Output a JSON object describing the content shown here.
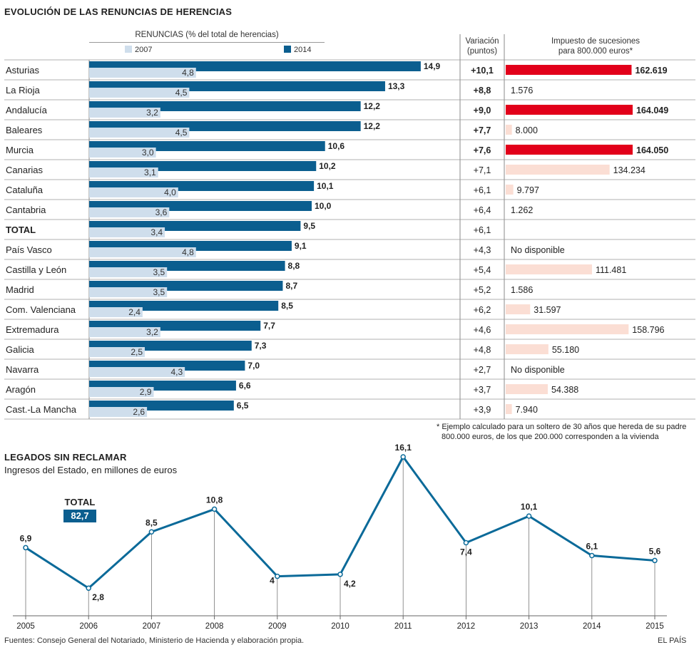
{
  "top": {
    "title": "EVOLUCIÓN DE LAS RENUNCIAS DE HERENCIAS",
    "bar_header": "RENUNCIAS (% del total de herencias)",
    "variation_header_1": "Variación",
    "variation_header_2": "(puntos)",
    "tax_header_1": "Impuesto de sucesiones",
    "tax_header_2": "para 800.000 euros*",
    "footnote_1": "* Ejemplo calculado para un soltero de 30 años que hereda de su padre",
    "footnote_2": "800.000 euros, de los que 200.000 corresponden a la vivienda"
  },
  "bottom": {
    "title": "LEGADOS SIN RECLAMAR",
    "subtitle": "Ingresos del Estado, en millones de euros",
    "total_label": "TOTAL",
    "total_value": "82,7"
  },
  "footer": {
    "sources": "Fuentes: Consejo General del Notariado, Ministerio de Hacienda y elaboración propia.",
    "brand": "EL PAÍS"
  },
  "colors": {
    "bar_2014": "#0b5e8f",
    "bar_2007": "#cfdeec",
    "tax_high": "#e2001a",
    "tax_mid": "#fbded4",
    "line": "#0b6a99"
  },
  "chart_data": [
    {
      "type": "bar",
      "title": "EVOLUCIÓN DE LAS RENUNCIAS DE HERENCIAS",
      "ylabel": "RENUNCIAS (% del total de herencias)",
      "xlim": [
        0,
        15
      ],
      "legend": "top",
      "categories": [
        "Asturias",
        "La Rioja",
        "Andalucía",
        "Baleares",
        "Murcia",
        "Canarias",
        "Cataluña",
        "Cantabria",
        "TOTAL",
        "País Vasco",
        "Castilla y León",
        "Madrid",
        "Com. Valenciana",
        "Extremadura",
        "Galicia",
        "Navarra",
        "Aragón",
        "Cast.-La Mancha"
      ],
      "series": [
        {
          "name": "2007",
          "values": [
            4.8,
            4.5,
            3.2,
            4.5,
            3.0,
            3.1,
            4.0,
            3.6,
            3.4,
            4.8,
            3.5,
            3.5,
            2.4,
            3.2,
            2.5,
            4.3,
            2.9,
            2.6
          ],
          "labels": [
            "4,8",
            "4,5",
            "3,2",
            "4,5",
            "3,0",
            "3,1",
            "4,0",
            "3,6",
            "3,4",
            "4,8",
            "3,5",
            "3,5",
            "2,4",
            "3,2",
            "2,5",
            "4,3",
            "2,9",
            "2,6"
          ]
        },
        {
          "name": "2014",
          "values": [
            14.9,
            13.3,
            12.2,
            12.2,
            10.6,
            10.2,
            10.1,
            10.0,
            9.5,
            9.1,
            8.8,
            8.7,
            8.5,
            7.7,
            7.3,
            7.0,
            6.6,
            6.5
          ],
          "labels": [
            "14,9",
            "13,3",
            "12,2",
            "12,2",
            "10,6",
            "10,2",
            "10,1",
            "10,0",
            "9,5",
            "9,1",
            "8,8",
            "8,7",
            "8,5",
            "7,7",
            "7,3",
            "7,0",
            "6,6",
            "6,5"
          ]
        }
      ],
      "variation": [
        "+10,1",
        "+8,8",
        "+9,0",
        "+7,7",
        "+7,6",
        "+7,1",
        "+6,1",
        "+6,4",
        "+6,1",
        "+4,3",
        "+5,4",
        "+5,2",
        "+6,2",
        "+4,6",
        "+4,8",
        "+2,7",
        "+3,7",
        "+3,9"
      ],
      "variation_bold": [
        true,
        true,
        true,
        true,
        true,
        false,
        false,
        false,
        false,
        false,
        false,
        false,
        false,
        false,
        false,
        false,
        false,
        false
      ],
      "tax": [
        162619,
        1576,
        164049,
        8000,
        164050,
        134234,
        9797,
        1262,
        null,
        null,
        111481,
        1586,
        31597,
        158796,
        55180,
        null,
        54388,
        7940
      ],
      "tax_labels": [
        "162.619",
        "1.576",
        "164.049",
        "8.000",
        "164.050",
        "134.234",
        "9.797",
        "1.262",
        "",
        "No disponible",
        "111.481",
        "1.586",
        "31.597",
        "158.796",
        "55.180",
        "No disponible",
        "54.388",
        "7.940"
      ],
      "tax_highlight": [
        true,
        false,
        true,
        false,
        true,
        false,
        false,
        false,
        false,
        false,
        false,
        false,
        false,
        false,
        false,
        false,
        false,
        false
      ]
    },
    {
      "type": "line",
      "title": "LEGADOS SIN RECLAMAR",
      "ylabel": "Ingresos del Estado, en millones de euros",
      "x": [
        "2005",
        "2006",
        "2007",
        "2008",
        "2009",
        "2010",
        "2011",
        "2012",
        "2013",
        "2014",
        "2015"
      ],
      "values": [
        6.9,
        2.8,
        8.5,
        10.8,
        4.0,
        4.2,
        16.1,
        7.4,
        10.1,
        6.1,
        5.6
      ],
      "labels": [
        "6,9",
        "2,8",
        "8,5",
        "10,8",
        "4",
        "4,2",
        "16,1",
        "7,4",
        "10,1",
        "6,1",
        "5,6"
      ],
      "label_below": [
        false,
        true,
        false,
        false,
        true,
        true,
        false,
        true,
        false,
        false,
        false
      ],
      "ylim": [
        0,
        16.1
      ]
    }
  ]
}
